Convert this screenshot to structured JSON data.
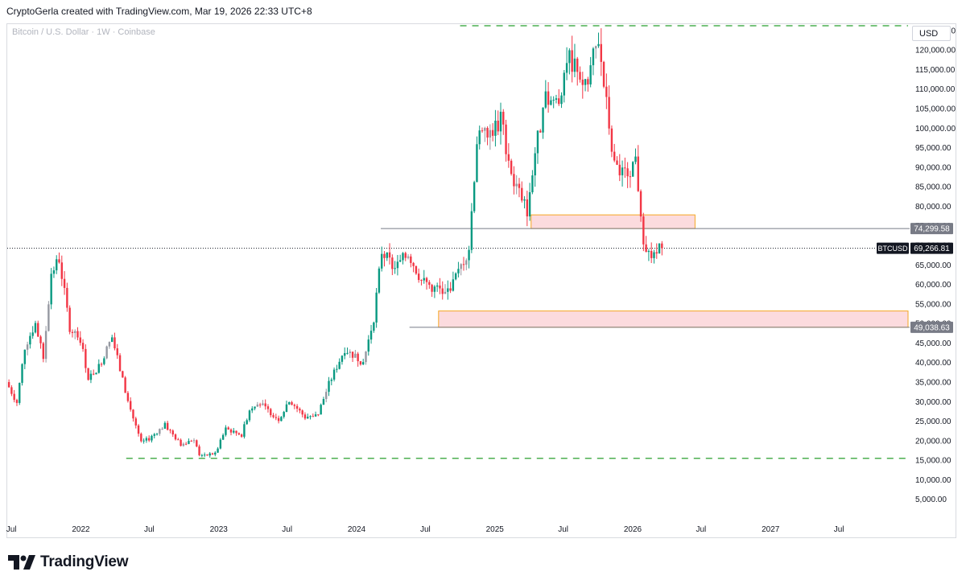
{
  "header": {
    "caption": "CryptoGerla created with TradingView.com, Mar 19, 2026 22:33 UTC+8"
  },
  "chart_title": "Bitcoin / U.S. Dollar · 1W · Coinbase",
  "currency_button": "USD",
  "footer": {
    "brand": "TradingView",
    "logo_icon": "tradingview-logo-icon"
  },
  "colors": {
    "up": "#089981",
    "down": "#f23645",
    "neutral": "#9598a1",
    "dashed": "#4caf50",
    "zone_fill": "#fcd5d8",
    "zone_border": "#f5a623"
  },
  "chart_data": {
    "type": "candlestick",
    "symbol": "BTCUSD",
    "interval": "1W",
    "ylim": [
      0,
      128000
    ],
    "y_ticks": [
      5000,
      10000,
      15000,
      20000,
      25000,
      30000,
      35000,
      40000,
      45000,
      50000,
      55000,
      60000,
      65000,
      70000,
      75000,
      80000,
      85000,
      90000,
      95000,
      100000,
      105000,
      110000,
      115000,
      120000,
      125000
    ],
    "y_tick_labels": [
      "5,000.00",
      "10,000.00",
      "15,000.00",
      "20,000.00",
      "25,000.00",
      "30,000.00",
      "35,000.00",
      "40,000.00",
      "45,000.00",
      "50,000.00",
      "55,000.00",
      "60,000.00",
      "65,000.00",
      "70,000.00",
      "75,000.00",
      "80,000.00",
      "85,000.00",
      "90,000.00",
      "95,000.00",
      "100,000.00",
      "105,000.00",
      "110,000.00",
      "115,000.00",
      "120,000.00",
      "125,000.00"
    ],
    "x_ticks": [
      {
        "date": "2021-07-01",
        "label": "Jul"
      },
      {
        "date": "2022-01-01",
        "label": "2022"
      },
      {
        "date": "2022-07-01",
        "label": "Jul"
      },
      {
        "date": "2023-01-01",
        "label": "2023"
      },
      {
        "date": "2023-07-01",
        "label": "Jul"
      },
      {
        "date": "2024-01-01",
        "label": "2024"
      },
      {
        "date": "2024-07-01",
        "label": "Jul"
      },
      {
        "date": "2025-01-01",
        "label": "2025"
      },
      {
        "date": "2025-07-01",
        "label": "Jul"
      },
      {
        "date": "2026-01-01",
        "label": "2026"
      },
      {
        "date": "2026-07-01",
        "label": "Jul"
      },
      {
        "date": "2027-01-01",
        "label": "2027"
      },
      {
        "date": "2027-07-01",
        "label": "Jul"
      }
    ],
    "x_range": [
      "2021-06-20",
      "2027-12-31"
    ],
    "last_price": 69266.81,
    "last_price_label": "69,266.81",
    "ticker_label": "BTCUSD",
    "level_labels": [
      {
        "price": 74299.58,
        "label": "74,299.58"
      },
      {
        "price": 49038.63,
        "label": "49,038.63"
      }
    ],
    "horizontal_lines": [
      {
        "price": 74299.58,
        "from": "2024-03-05",
        "style": "solid"
      },
      {
        "price": 49038.63,
        "from": "2024-05-20",
        "style": "solid"
      }
    ],
    "dashed_levels": [
      {
        "price": 126200,
        "from": "2024-10-01",
        "to": "2027-12-31"
      },
      {
        "price": 15500,
        "from": "2022-05-01",
        "to": "2027-12-31"
      }
    ],
    "zones": [
      {
        "from": "2025-04-07",
        "to": "2026-06-15",
        "top": 77800,
        "bottom": 74300
      },
      {
        "from": "2024-08-05",
        "to": "2027-12-31",
        "top": 53200,
        "bottom": 49038.63
      }
    ],
    "anchors": [
      [
        "2021-06-21",
        35000
      ],
      [
        "2021-07-19",
        29800
      ],
      [
        "2021-08-09",
        44000
      ],
      [
        "2021-09-06",
        50000
      ],
      [
        "2021-09-27",
        41000
      ],
      [
        "2021-10-18",
        63000
      ],
      [
        "2021-11-08",
        66500
      ],
      [
        "2021-12-06",
        49000
      ],
      [
        "2022-01-03",
        46000
      ],
      [
        "2022-01-24",
        36000
      ],
      [
        "2022-02-21",
        39000
      ],
      [
        "2022-03-28",
        46500
      ],
      [
        "2022-05-09",
        30000
      ],
      [
        "2022-06-13",
        19500
      ],
      [
        "2022-07-04",
        20500
      ],
      [
        "2022-08-15",
        24000
      ],
      [
        "2022-09-26",
        19000
      ],
      [
        "2022-10-31",
        20500
      ],
      [
        "2022-11-14",
        16500
      ],
      [
        "2022-12-26",
        16600
      ],
      [
        "2023-01-23",
        23000
      ],
      [
        "2023-03-06",
        21500
      ],
      [
        "2023-03-27",
        28000
      ],
      [
        "2023-04-17",
        30000
      ],
      [
        "2023-06-12",
        25500
      ],
      [
        "2023-07-10",
        30500
      ],
      [
        "2023-08-21",
        26000
      ],
      [
        "2023-09-25",
        27000
      ],
      [
        "2023-10-23",
        34500
      ],
      [
        "2023-12-04",
        43500
      ],
      [
        "2024-01-22",
        40000
      ],
      [
        "2024-02-19",
        51500
      ],
      [
        "2024-03-11",
        68500
      ],
      [
        "2024-04-15",
        64000
      ],
      [
        "2024-05-20",
        68000
      ],
      [
        "2024-06-24",
        61000
      ],
      [
        "2024-07-29",
        59000
      ],
      [
        "2024-08-26",
        57500
      ],
      [
        "2024-09-30",
        63000
      ],
      [
        "2024-10-28",
        69500
      ],
      [
        "2024-11-18",
        97000
      ],
      [
        "2024-12-16",
        98000
      ],
      [
        "2025-01-20",
        102000
      ],
      [
        "2025-02-24",
        86000
      ],
      [
        "2025-03-31",
        79000
      ],
      [
        "2025-04-21",
        94000
      ],
      [
        "2025-05-19",
        107000
      ],
      [
        "2025-06-23",
        107500
      ],
      [
        "2025-07-14",
        118000
      ],
      [
        "2025-08-11",
        116000
      ],
      [
        "2025-09-01",
        110000
      ],
      [
        "2025-10-06",
        123000
      ],
      [
        "2025-10-20",
        111000
      ],
      [
        "2025-11-17",
        90000
      ],
      [
        "2025-12-15",
        88000
      ],
      [
        "2026-01-12",
        91500
      ],
      [
        "2026-02-02",
        72000
      ],
      [
        "2026-02-23",
        66000
      ],
      [
        "2026-03-16",
        69266.81
      ]
    ]
  }
}
